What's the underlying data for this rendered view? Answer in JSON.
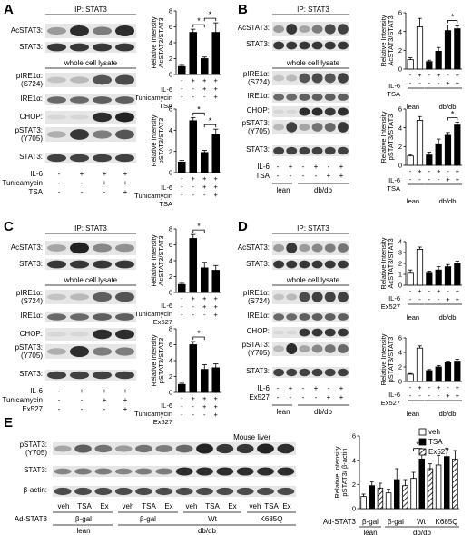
{
  "panel_letters": [
    "A",
    "B",
    "C",
    "D",
    "E"
  ],
  "blot_text": {
    "ip_header": "IP: STAT3",
    "wcl_header": "whole cell lysate",
    "ac_stat3": "AcSTAT3:",
    "stat3": "STAT3:",
    "pire1a_1": "pIRE1α:",
    "pire1a_2": "(S724)",
    "ire1a": "IRE1α:",
    "chop": "CHOP:",
    "pstat3_1": "pSTAT3:",
    "pstat3_2": "(Y705)",
    "il6": "IL-6",
    "tunicamycin": "Tunicamycin",
    "tsa": "TSA",
    "ex527": "Ex527",
    "lean": "lean",
    "dbdb": "db/db",
    "mouse_liver": "Mouse liver",
    "b_actin": "β-actin:",
    "ad_stat3": "Ad-STAT3",
    "veh": "veh",
    "ex": "Ex",
    "bgal": "β-gal",
    "wt": "Wt",
    "k685q": "K685Q"
  },
  "signs": {
    "plus": "+",
    "minus": "-"
  },
  "treatments": {
    "il6_a": [
      "-",
      "+",
      "+",
      "+"
    ],
    "tun_a": [
      "-",
      "-",
      "+",
      "+"
    ],
    "drug_a": [
      "-",
      "-",
      "-",
      "+"
    ],
    "il6_b": [
      "-",
      "+",
      "-",
      "+",
      "-",
      "+"
    ],
    "drug_b": [
      "-",
      "-",
      "-",
      "-",
      "+",
      "+"
    ],
    "e_treat": [
      "veh",
      "TSA",
      "Ex",
      "veh",
      "TSA",
      "Ex",
      "veh",
      "TSA",
      "Ex"
    ]
  },
  "chart_data": [
    {
      "panel": "A",
      "type": "bar",
      "ylabel": "Relative Intensity AcSTAT3/STAT3",
      "ylim": [
        0,
        8
      ],
      "yticks": [
        0,
        2,
        4,
        6,
        8
      ],
      "values": [
        1.0,
        5.3,
        2.0,
        5.3
      ],
      "errors": [
        0.15,
        0.4,
        0.2,
        1.2
      ],
      "colors": [
        "black",
        "black",
        "black",
        "black"
      ],
      "significance": "*"
    },
    {
      "panel": "A",
      "type": "bar",
      "ylabel": "Relative Intensity pSTAT3/STAT3",
      "ylim": [
        0,
        6
      ],
      "yticks": [
        0,
        2,
        4,
        6
      ],
      "values": [
        1.0,
        4.9,
        1.9,
        3.6
      ],
      "errors": [
        0.15,
        0.3,
        0.2,
        0.5
      ],
      "colors": [
        "black",
        "black",
        "black",
        "black"
      ],
      "significance": "*"
    },
    {
      "panel": "B",
      "type": "bar",
      "ylabel": "Relative Intensity AcSTAT3/STAT3",
      "ylim": [
        0,
        6
      ],
      "yticks": [
        0,
        2,
        4,
        6
      ],
      "values": [
        1.0,
        4.5,
        0.8,
        1.9,
        4.1,
        4.3
      ],
      "errors": [
        0.2,
        0.9,
        0.15,
        0.4,
        0.6,
        0.3
      ],
      "colors": [
        "white",
        "white",
        "black",
        "black",
        "black",
        "black"
      ],
      "significance": "*"
    },
    {
      "panel": "B",
      "type": "bar",
      "ylabel": "Relative Intensity pSTAT3/STAT3",
      "ylim": [
        0,
        6
      ],
      "yticks": [
        0,
        2,
        4,
        6
      ],
      "values": [
        1.0,
        4.8,
        1.1,
        2.3,
        3.2,
        4.3
      ],
      "errors": [
        0.15,
        0.4,
        0.3,
        0.5,
        0.3,
        0.3
      ],
      "colors": [
        "white",
        "white",
        "black",
        "black",
        "black",
        "black"
      ],
      "significance": "*"
    },
    {
      "panel": "C",
      "type": "bar",
      "ylabel": "Relative Intensity AcSTAT3/STAT3",
      "ylim": [
        0,
        8
      ],
      "yticks": [
        0,
        2,
        4,
        6,
        8
      ],
      "values": [
        1.0,
        6.8,
        3.1,
        2.8
      ],
      "errors": [
        0.15,
        0.5,
        0.7,
        0.6
      ],
      "colors": [
        "black",
        "black",
        "black",
        "black"
      ],
      "significance": "*"
    },
    {
      "panel": "C",
      "type": "bar",
      "ylabel": "Relative Intensity pSTAT3/STAT3",
      "ylim": [
        0,
        8
      ],
      "yticks": [
        0,
        2,
        4,
        6,
        8
      ],
      "values": [
        1.0,
        6.0,
        2.9,
        3.1
      ],
      "errors": [
        0.15,
        0.4,
        0.6,
        0.5
      ],
      "colors": [
        "black",
        "black",
        "black",
        "black"
      ],
      "significance": "*"
    },
    {
      "panel": "D",
      "type": "bar",
      "ylabel": "Relative Intensity AcSTAT3/STAT3",
      "ylim": [
        0,
        4
      ],
      "yticks": [
        0,
        1,
        2,
        3,
        4
      ],
      "values": [
        1.1,
        3.3,
        1.1,
        1.4,
        1.7,
        2.0
      ],
      "errors": [
        0.3,
        0.2,
        0.2,
        0.3,
        0.2,
        0.2
      ],
      "colors": [
        "white",
        "white",
        "black",
        "black",
        "black",
        "black"
      ]
    },
    {
      "panel": "D",
      "type": "bar",
      "ylabel": "Relative Intensity pSTAT3/STAT3",
      "ylim": [
        0,
        6
      ],
      "yticks": [
        0,
        2,
        4,
        6
      ],
      "values": [
        1.0,
        4.6,
        1.5,
        2.0,
        2.6,
        2.8
      ],
      "errors": [
        0.1,
        0.3,
        0.15,
        0.2,
        0.2,
        0.25
      ],
      "colors": [
        "white",
        "white",
        "black",
        "black",
        "black",
        "black"
      ]
    },
    {
      "panel": "E",
      "type": "bar",
      "ylabel": "Relative Intensity pSTAT3/ β-actin",
      "ylim": [
        0,
        6
      ],
      "yticks": [
        0,
        2,
        4,
        6
      ],
      "values": [
        1.0,
        1.9,
        1.7,
        1.3,
        2.4,
        1.9,
        2.5,
        4.1,
        3.3,
        3.6,
        4.3,
        4.1
      ],
      "errors": [
        0.2,
        0.3,
        0.4,
        0.3,
        0.9,
        0.5,
        0.5,
        0.5,
        0.4,
        0.8,
        0.7,
        0.7
      ],
      "colors": [
        "white",
        "black",
        "hatch",
        "white",
        "black",
        "hatch",
        "white",
        "black",
        "hatch",
        "white",
        "black",
        "hatch"
      ],
      "legend": [
        "veh",
        "TSA",
        "Ex527"
      ],
      "significance": "*"
    }
  ]
}
